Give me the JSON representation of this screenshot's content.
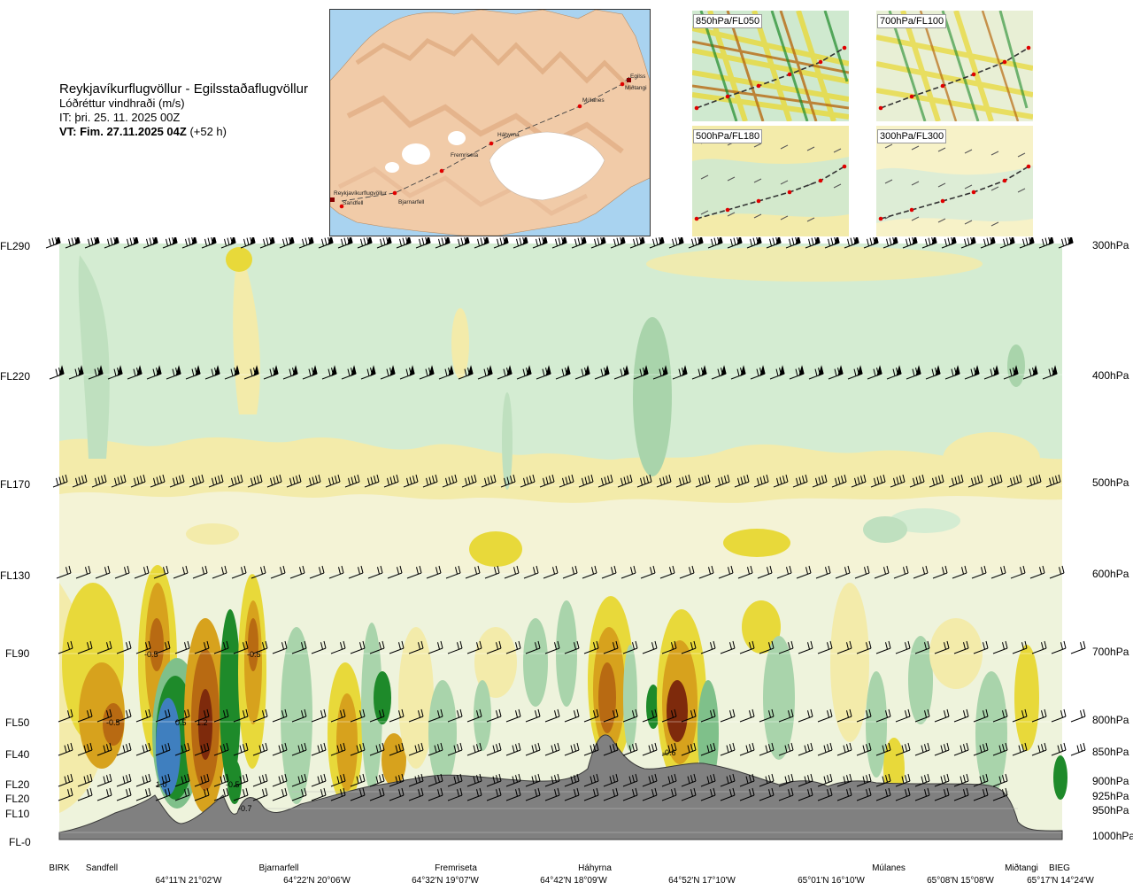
{
  "header": {
    "route": "Reykjavíkurflugvöllur - Egilsstaðaflugvöllur",
    "variable": "Lóðréttur vindhraði (m/s)",
    "issue_time": "IT: þri. 25. 11. 2025 00Z",
    "valid_label": "VT: Fim. 27.11.2025 04Z",
    "lead_time": "(+52 h)"
  },
  "map": {
    "places": [
      "Reykjavíkurflugvöllur",
      "Sandfell",
      "Bjarnarfell",
      "Fremriseta",
      "Háhyrna",
      "Múlanes",
      "Miðtangi",
      "Egilss"
    ]
  },
  "insets": [
    {
      "label": "850hPa/FL050"
    },
    {
      "label": "700hPa/FL100"
    },
    {
      "label": "500hPa/FL180"
    },
    {
      "label": "300hPa/FL300"
    }
  ],
  "levels_left": [
    "FL290",
    "FL220",
    "FL170",
    "FL130",
    "FL90",
    "FL50",
    "FL40",
    "FL20",
    "FL20",
    "FL10",
    "FL-0"
  ],
  "levels_right": [
    "300hPa",
    "400hPa",
    "500hPa",
    "600hPa",
    "700hPa",
    "800hPa",
    "850hPa",
    "900hPa",
    "925hPa",
    "950hPa",
    "1000hPa"
  ],
  "bottom_places": [
    "BIRK",
    "Sandfell",
    "Bjarnarfell",
    "Fremriseta",
    "Háhyrna",
    "Múlanes",
    "Miðtangi",
    "BIEG"
  ],
  "bottom_coords": [
    "64°11'N 21°02'W",
    "64°22'N 20°06'W",
    "64°32'N 19°07'W",
    "64°42'N 18°09'W",
    "64°52'N 17°10'W",
    "65°01'N 16°10'W",
    "65°08'N 15°08'W",
    "65°17'N 14°24'W"
  ],
  "contour_labels": [
    "-0.5",
    "-0.5",
    "0.5",
    "1.2",
    "-0.5",
    "-0.5",
    "1.0",
    "-0.5",
    "-0.7",
    "-0.6"
  ],
  "colors": {
    "strong_down": "#3f7fbf",
    "down2": "#1e8a2a",
    "down1": "#7fc08a",
    "weak_down": "#cfe9cf",
    "neutral": "#f4f8e8",
    "weak_up": "#f3ebaa",
    "up1": "#e8d93a",
    "up2": "#d7a21d",
    "up3": "#b86a12",
    "strong_up": "#7e2a0c",
    "terrain": "#808080"
  },
  "chart_data": {
    "type": "heatmap",
    "title": "Lóðréttur vindhraði (m/s)",
    "xlabel": "",
    "ylabel": "",
    "pressure_levels_hPa": [
      300,
      400,
      500,
      600,
      700,
      800,
      850,
      900,
      925,
      950,
      1000
    ],
    "flight_levels": [
      "FL290",
      "FL220",
      "FL170",
      "FL130",
      "FL90",
      "FL50",
      "FL40",
      "FL20",
      "FL20",
      "FL10",
      "FL-0"
    ],
    "waypoints": [
      "BIRK",
      "Sandfell",
      "Bjarnarfell",
      "Fremriseta",
      "Háhyrna",
      "Múlanes",
      "Miðtangi",
      "BIEG"
    ],
    "contour_values": [
      -0.7,
      -0.6,
      -0.5,
      0.5,
      1.0,
      1.2
    ]
  }
}
